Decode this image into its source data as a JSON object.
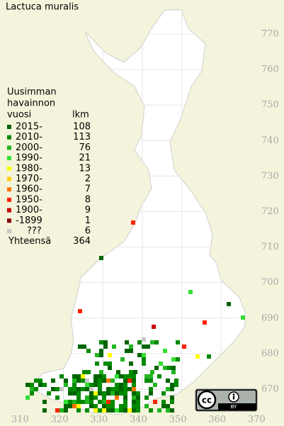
{
  "title": "Lactuca muralis",
  "legend": {
    "header": [
      "Uusimman",
      "havainnon",
      "vuosi"
    ],
    "count_header": "lkm",
    "rows": [
      {
        "label": "2015-",
        "count": 108,
        "color": "#006400"
      },
      {
        "label": "2010-",
        "count": 113,
        "color": "#008a00"
      },
      {
        "label": "2000-",
        "count": 76,
        "color": "#22b422"
      },
      {
        "label": "1990-",
        "count": 21,
        "color": "#33e033"
      },
      {
        "label": "1980-",
        "count": 13,
        "color": "#ffff00"
      },
      {
        "label": "1970-",
        "count": 2,
        "color": "#ffcc00"
      },
      {
        "label": "1960-",
        "count": 7,
        "color": "#ff7700"
      },
      {
        "label": "1950-",
        "count": 8,
        "color": "#ff2200"
      },
      {
        "label": "1900-",
        "count": 9,
        "color": "#cc0000"
      },
      {
        "label": "-1899",
        "count": 1,
        "color": "#8b0000"
      },
      {
        "label": "???",
        "count": 6,
        "color": "#c8c8c8"
      }
    ],
    "total_label": "Yhteensä",
    "total": 364
  },
  "grid": {
    "y_labels": [
      770,
      760,
      750,
      740,
      730,
      720,
      710,
      700,
      690,
      680,
      670
    ],
    "x_labels": [
      310,
      320,
      330,
      340,
      350,
      360,
      370
    ]
  },
  "license": {
    "badge": "cc",
    "by": "BY"
  }
}
